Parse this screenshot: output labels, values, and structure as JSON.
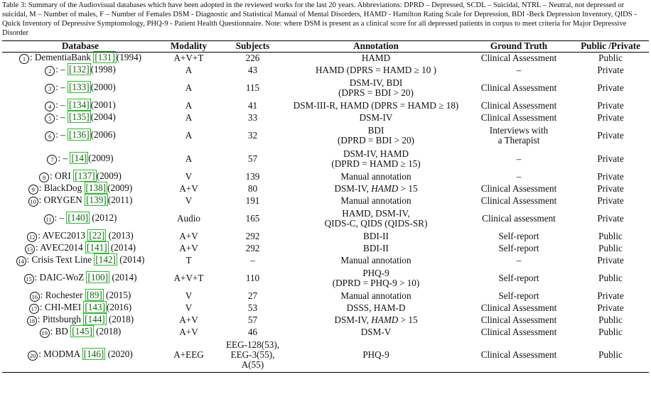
{
  "caption": "Table 3: Summary of the Audiovisual databases which have been adopted in the reviewed works for the last 20 years. Abbreviations: DPRD – Depressed, SCDL – Suicidal, NTRL – Neutral, not depressed or suicidal, M – Number of males, F – Number of Females DSM - Diagnostic and Statistical Manual of Mental Disorders, HAMD - Hamilton Rating Scale for Depression, BDI -Beck Depression Inventory, QIDS - Quick Inventory of Depressive Symptomology, PHQ-9 - Patient Health Questionnaire. Note: where DSM is present as a clinical score for all depressed patients in corpus to meet criteria for Major Depressive Disorder",
  "headers": {
    "database": "Database",
    "modality": "Modality",
    "subjects": "Subjects",
    "annotation": "Annotation",
    "ground_truth": "Ground Truth",
    "access": "Public /Private"
  },
  "rows": [
    {
      "num": "1",
      "name": "DementiaBank ",
      "ref": "131",
      "year": "(1994)",
      "modality": "A+V+T",
      "subjects": [
        "226"
      ],
      "annotation": [
        "HAMD"
      ],
      "ground_truth": [
        "Clinical Assessment"
      ],
      "access": "Public"
    },
    {
      "num": "2",
      "name": "– ",
      "ref": "132",
      "year": "(1998)",
      "modality": "A",
      "subjects": [
        "43"
      ],
      "annotation": [
        "HAMD (DPRS = HAMD ≥ 10 )"
      ],
      "ground_truth": [
        "–"
      ],
      "access": "Private"
    },
    {
      "num": "3",
      "name": "– ",
      "ref": "133",
      "year": "(2000)",
      "modality": "A",
      "subjects": [
        "115"
      ],
      "annotation": [
        "DSM-IV, BDI",
        "(DPRS = BDI > 20)"
      ],
      "ground_truth": [
        "Clinical Assessment"
      ],
      "access": "Private"
    },
    {
      "num": "4",
      "name": "– ",
      "ref": "134",
      "year": "(2001)",
      "modality": "A",
      "subjects": [
        "41"
      ],
      "annotation": [
        "DSM-III-R, HAMD (DPRS = HAMD ≥ 18)"
      ],
      "ground_truth": [
        "Clinical Assessment"
      ],
      "access": "Private"
    },
    {
      "num": "5",
      "name": "– ",
      "ref": "135",
      "year": "(2004)",
      "modality": "A",
      "subjects": [
        "33"
      ],
      "annotation": [
        "DSM-IV"
      ],
      "ground_truth": [
        "Clinical Assessment"
      ],
      "access": "Private"
    },
    {
      "num": "6",
      "name": "– ",
      "ref": "136",
      "year": "(2006)",
      "modality": "A",
      "subjects": [
        "32"
      ],
      "annotation": [
        "BDI",
        "(DPRD = BDI > 20)"
      ],
      "ground_truth": [
        "Interviews with",
        "a Therapist"
      ],
      "access": "Private"
    },
    {
      "num": "7",
      "name": "– ",
      "ref": "14",
      "year": "(2009)",
      "modality": "A",
      "subjects": [
        "57"
      ],
      "annotation": [
        "DSM-IV, HAMD",
        "(DPRD = HAMD ≥ 15)"
      ],
      "ground_truth": [
        "–"
      ],
      "access": "Private"
    },
    {
      "num": "8",
      "name": "ORI ",
      "ref": "137",
      "year": "(2009)",
      "modality": "V",
      "subjects": [
        "139"
      ],
      "annotation": [
        "Manual annotation"
      ],
      "ground_truth": [
        "–"
      ],
      "access": "Private"
    },
    {
      "num": "9",
      "name": "BlackDog ",
      "ref": "138",
      "year": "(2009)",
      "modality": "A+V",
      "subjects": [
        "80"
      ],
      "annotation": [
        "DSM-IV, ",
        "HAMD",
        " > 15"
      ],
      "annotation_style": "italic-mid",
      "ground_truth": [
        "Clinical Assessment"
      ],
      "access": "Private"
    },
    {
      "num": "10",
      "name": "ORYGEN ",
      "ref": "139",
      "year": "(2011)",
      "modality": "V",
      "subjects": [
        "191"
      ],
      "annotation": [
        "Manual annotation"
      ],
      "ground_truth": [
        "Clinical Assessment"
      ],
      "access": "Private"
    },
    {
      "num": "11",
      "name": "– ",
      "ref": "140",
      "year": " (2012)",
      "modality": "Audio",
      "subjects": [
        "165"
      ],
      "annotation": [
        "HAMD, DSM-IV,",
        "QIDS-C, QIDS (QIDS-SR)"
      ],
      "ground_truth": [
        "Clinical assessment"
      ],
      "access": "Private"
    },
    {
      "num": "12",
      "name": "AVEC2013 ",
      "ref": "22",
      "year": " (2013)",
      "modality": "A+V",
      "subjects": [
        "292"
      ],
      "annotation": [
        "BDI-II"
      ],
      "ground_truth": [
        "Self-report"
      ],
      "access": "Public"
    },
    {
      "num": "13",
      "name": "AVEC2014 ",
      "ref": "141",
      "year": " (2014)",
      "modality": "A+V",
      "subjects": [
        "292"
      ],
      "annotation": [
        "BDI-II"
      ],
      "ground_truth": [
        "Self-report"
      ],
      "access": "Public"
    },
    {
      "num": "14",
      "name": "Crisis Text Line ",
      "ref": "142",
      "year": " (2014)",
      "modality": "T",
      "subjects": [
        "–"
      ],
      "annotation": [
        "Manual annotation"
      ],
      "ground_truth": [
        "–"
      ],
      "access": "Private"
    },
    {
      "num": "15",
      "name": "DAIC-WoZ ",
      "ref": "100",
      "year": " (2014)",
      "modality": "A+V+T",
      "subjects": [
        "110"
      ],
      "annotation": [
        "PHQ-9",
        "(DPRD = PHQ-9 > 10)"
      ],
      "ground_truth": [
        "Self-report"
      ],
      "access": "Public"
    },
    {
      "num": "16",
      "name": "Rochester ",
      "ref": "89",
      "year": " (2015)",
      "modality": "V",
      "subjects": [
        "27"
      ],
      "annotation": [
        "Manual annotation"
      ],
      "ground_truth": [
        "Self-report"
      ],
      "access": "Private"
    },
    {
      "num": "17",
      "name": "CHI-MEI ",
      "ref": "143",
      "year": "(2016)",
      "modality": "V",
      "subjects": [
        "53"
      ],
      "annotation": [
        "DSSS, HAM-D"
      ],
      "ground_truth": [
        "Clinical Assessment"
      ],
      "access": "Private"
    },
    {
      "num": "18",
      "name": "Pittsburgh ",
      "ref": "144",
      "year": " (2018)",
      "modality": "A+V",
      "subjects": [
        "57"
      ],
      "annotation": [
        "DSM-IV, ",
        "HAMD",
        " > 15"
      ],
      "annotation_style": "italic-mid",
      "ground_truth": [
        "Clinical Assessment"
      ],
      "access": "Public"
    },
    {
      "num": "19",
      "name": "BD ",
      "ref": "145",
      "year": " (2018)",
      "modality": "A+V",
      "subjects": [
        "46"
      ],
      "annotation": [
        "DSM-V"
      ],
      "ground_truth": [
        "Clinical Assessment"
      ],
      "access": "Public"
    },
    {
      "num": "20",
      "name": "MODMA ",
      "ref": "146",
      "year": " (2020)",
      "modality": "A+EEG",
      "subjects": [
        "EEG-128(53),",
        "EEG-3(55),",
        "A(55)"
      ],
      "annotation": [
        "PHQ-9"
      ],
      "ground_truth": [
        "Clinical Assessment"
      ],
      "access": "Public"
    }
  ]
}
